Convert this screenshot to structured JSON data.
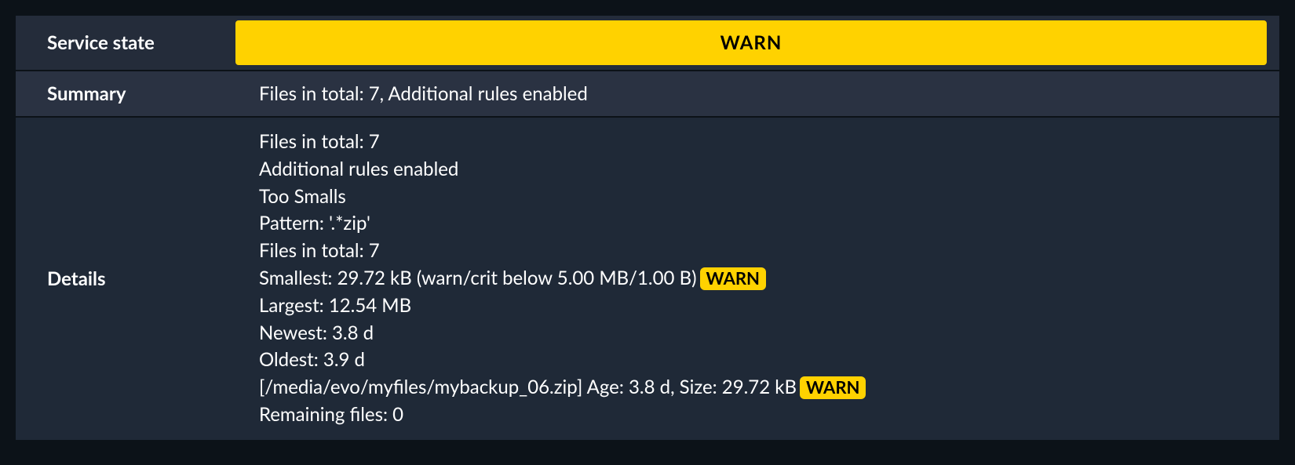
{
  "colors": {
    "page_bg": "#0c1218",
    "row_bg_dark": "#1f2937",
    "row_bg_mid": "#242c3a",
    "row_bg_light": "#2a3242",
    "warn_bg": "#ffd200",
    "warn_fg": "#000000",
    "text": "#ffffff"
  },
  "labels": {
    "service_state": "Service state",
    "summary": "Summary",
    "details": "Details"
  },
  "state": {
    "value": "WARN"
  },
  "summary": {
    "text": "Files in total: 7, Additional rules enabled"
  },
  "details": {
    "lines": [
      {
        "text": "Files in total: 7",
        "badge": null
      },
      {
        "text": "Additional rules enabled",
        "badge": null
      },
      {
        "text": "Too Smalls",
        "badge": null
      },
      {
        "text": "Pattern: '.*zip'",
        "badge": null
      },
      {
        "text": "Files in total: 7",
        "badge": null
      },
      {
        "text": "Smallest: 29.72 kB (warn/crit below 5.00 MB/1.00 B)",
        "badge": "WARN"
      },
      {
        "text": "Largest: 12.54 MB",
        "badge": null
      },
      {
        "text": "Newest: 3.8 d",
        "badge": null
      },
      {
        "text": "Oldest: 3.9 d",
        "badge": null
      },
      {
        "text": "[/media/evo/myfiles/mybackup_06.zip] Age: 3.8 d, Size: 29.72 kB",
        "badge": "WARN"
      },
      {
        "text": "Remaining files: 0",
        "badge": null
      }
    ]
  }
}
